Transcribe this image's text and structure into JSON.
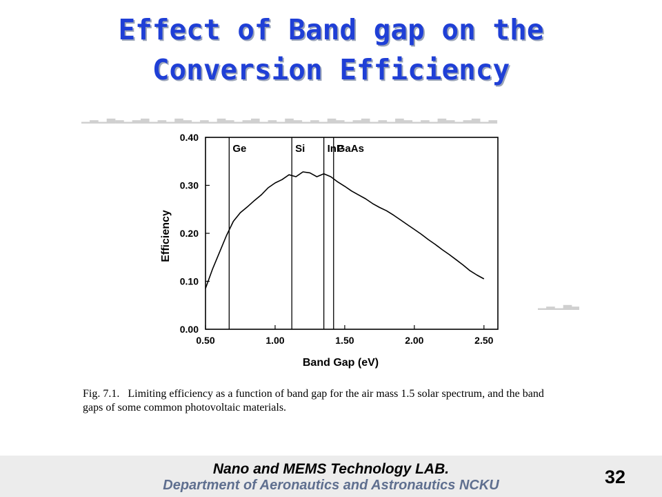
{
  "slide": {
    "title_line1": "Effect of Band gap on the",
    "title_line2": "Conversion Efficiency",
    "caption_fig": "Fig. 7.1.",
    "caption_text": "Limiting efficiency as a function of band gap for the air mass 1.5 solar spectrum, and the band gaps of some common photovoltaic materials.",
    "footer_lab": "Nano and MEMS Technology LAB.",
    "footer_dept": "Department of Aeronautics and Astronautics NCKU",
    "page_number": "32",
    "title_color": "#1f3fd6",
    "footer_dept_color": "#5f6f8f"
  },
  "chart_data": {
    "type": "line",
    "xlabel": "Band Gap (eV)",
    "ylabel": "Efficiency",
    "xlim": [
      0.5,
      2.6
    ],
    "ylim": [
      0.0,
      0.4
    ],
    "xticks": [
      "0.50",
      "1.00",
      "1.50",
      "2.00",
      "2.50"
    ],
    "yticks": [
      "0.00",
      "0.10",
      "0.20",
      "0.30",
      "0.40"
    ],
    "grid": false,
    "x": [
      0.5,
      0.55,
      0.6,
      0.65,
      0.7,
      0.75,
      0.8,
      0.85,
      0.9,
      0.95,
      1.0,
      1.05,
      1.1,
      1.15,
      1.2,
      1.25,
      1.3,
      1.35,
      1.4,
      1.45,
      1.5,
      1.55,
      1.6,
      1.65,
      1.7,
      1.75,
      1.8,
      1.85,
      1.9,
      1.95,
      2.0,
      2.05,
      2.1,
      2.15,
      2.2,
      2.25,
      2.3,
      2.35,
      2.4,
      2.45,
      2.5
    ],
    "values": [
      0.085,
      0.125,
      0.16,
      0.195,
      0.225,
      0.243,
      0.255,
      0.268,
      0.28,
      0.295,
      0.305,
      0.312,
      0.322,
      0.318,
      0.328,
      0.326,
      0.318,
      0.324,
      0.318,
      0.307,
      0.298,
      0.288,
      0.28,
      0.272,
      0.262,
      0.254,
      0.247,
      0.238,
      0.228,
      0.218,
      0.208,
      0.198,
      0.187,
      0.177,
      0.166,
      0.156,
      0.145,
      0.134,
      0.122,
      0.113,
      0.105
    ],
    "materials": [
      {
        "label": "Ge",
        "bandgap": 0.67
      },
      {
        "label": "Si",
        "bandgap": 1.12
      },
      {
        "label": "InP",
        "bandgap": 1.35
      },
      {
        "label": "GaAs",
        "bandgap": 1.42
      }
    ]
  }
}
